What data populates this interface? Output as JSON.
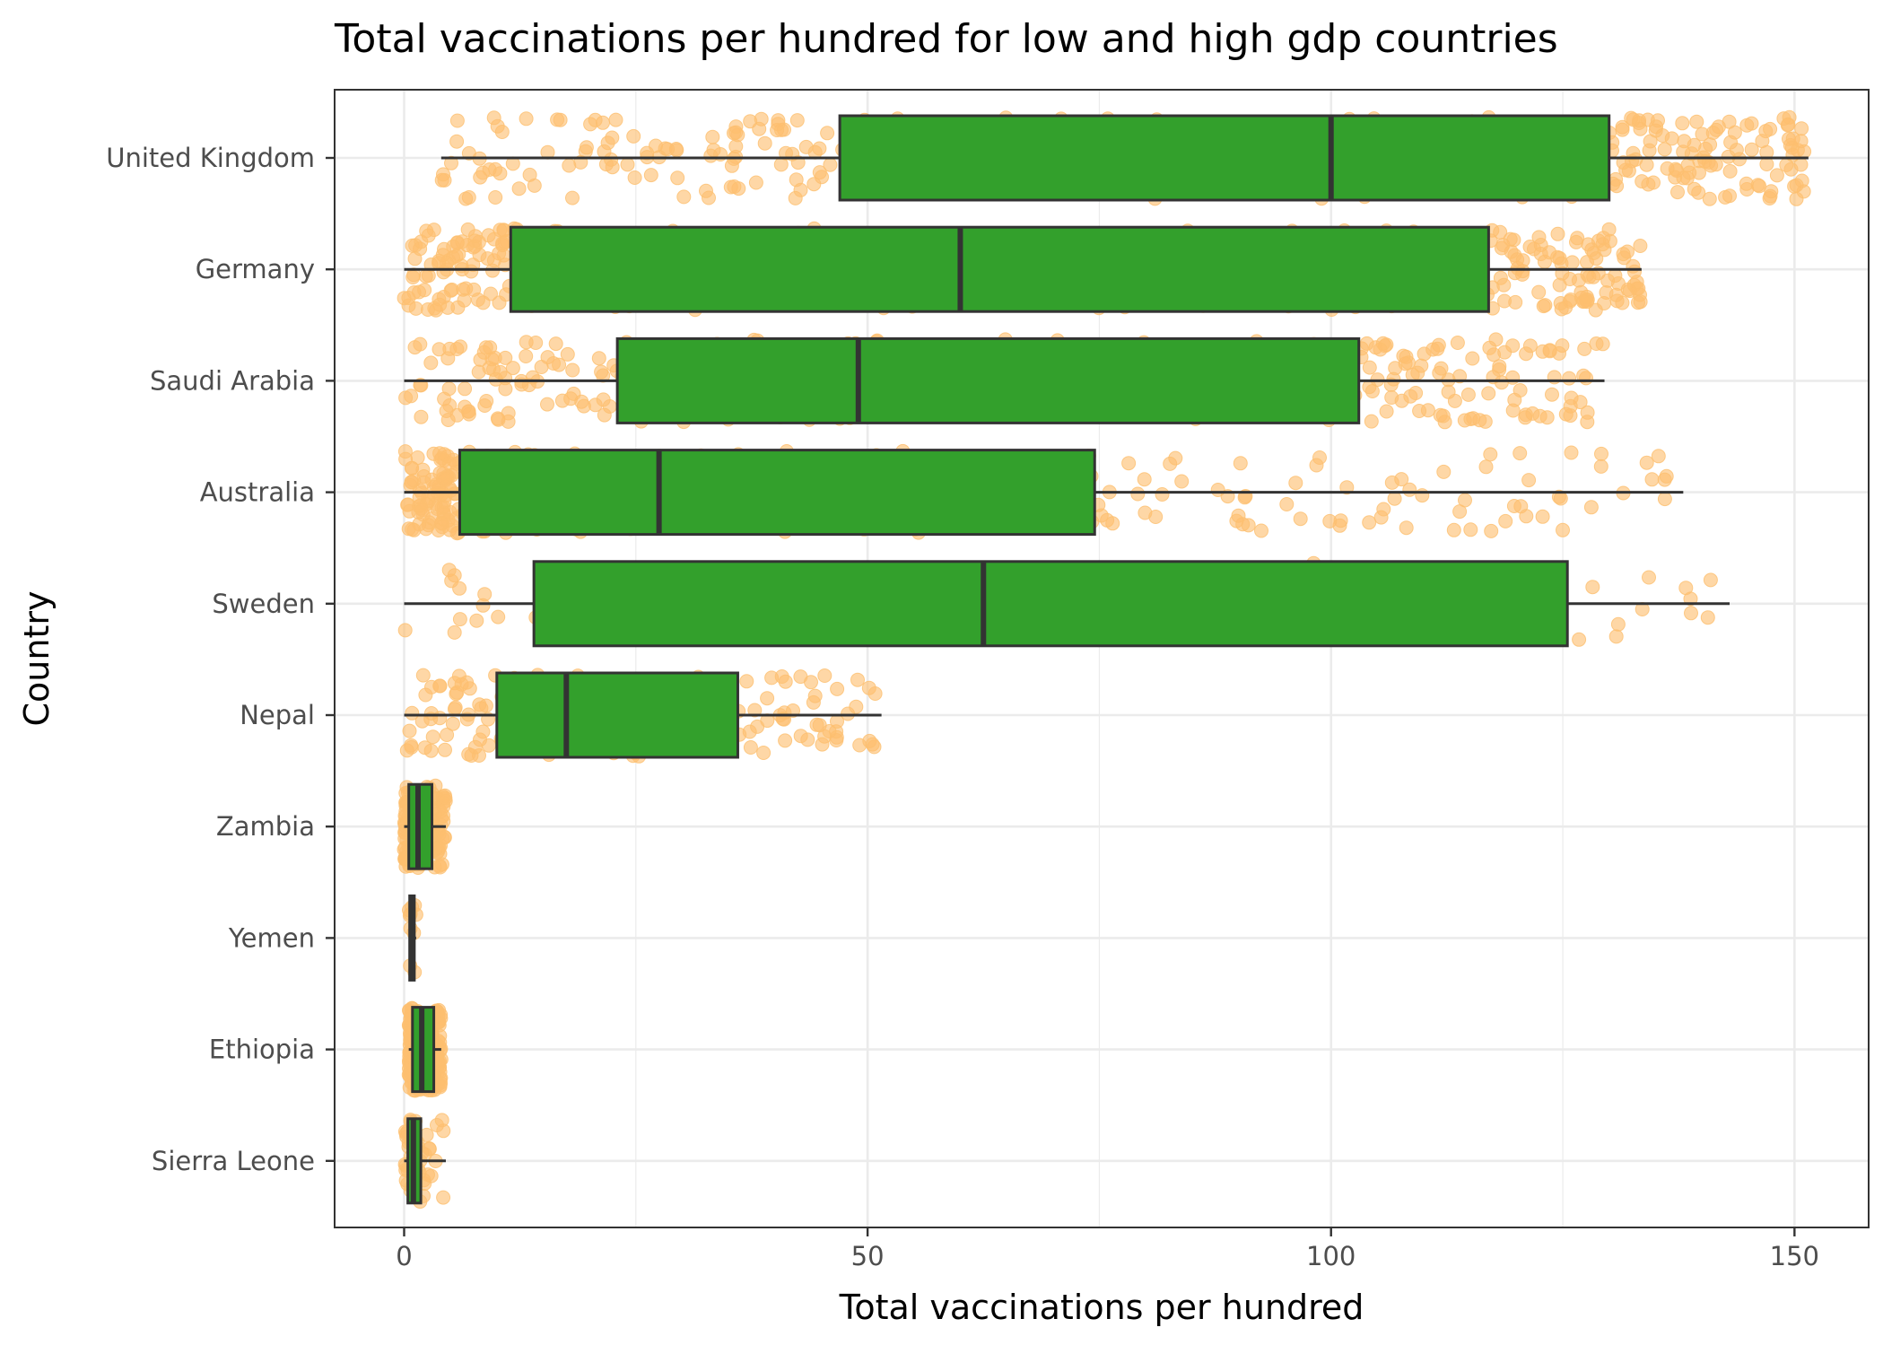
{
  "chart_data": {
    "type": "boxplot",
    "title": "Total vaccinations per hundred for low and high gdp countries",
    "xlabel": "Total vaccinations per hundred",
    "ylabel": "Country",
    "xlim": [
      -7.5,
      158
    ],
    "x_ticks": [
      0,
      50,
      100,
      150
    ],
    "x_tick_labels": [
      "0",
      "50",
      "100",
      "150"
    ],
    "grid": true,
    "orientation": "horizontal",
    "colors": {
      "box_fill": "#33a02c",
      "box_line": "#333333",
      "points": "#fdbf6f",
      "grid": "#ebebeb",
      "panel_border": "#333333"
    },
    "categories": [
      "United Kingdom",
      "Germany",
      "Saudi Arabia",
      "Australia",
      "Sweden",
      "Nepal",
      "Zambia",
      "Yemen",
      "Ethiopia",
      "Sierra Leone"
    ],
    "boxes": [
      {
        "category": "United Kingdom",
        "whisker_low": 4,
        "q1": 47,
        "median": 100,
        "q3": 130,
        "whisker_high": 151.5,
        "point_count": 380
      },
      {
        "category": "Germany",
        "whisker_low": 0,
        "q1": 11.5,
        "median": 60,
        "q3": 117,
        "whisker_high": 133.5,
        "point_count": 380
      },
      {
        "category": "Saudi Arabia",
        "whisker_low": 0,
        "q1": 23,
        "median": 49,
        "q3": 103,
        "whisker_high": 129.5,
        "point_count": 340
      },
      {
        "category": "Australia",
        "whisker_low": 0,
        "q1": 6,
        "median": 27.5,
        "q3": 74.5,
        "whisker_high": 138,
        "point_count": 330
      },
      {
        "category": "Sweden",
        "whisker_low": 0,
        "q1": 14,
        "median": 62.5,
        "q3": 125.5,
        "whisker_high": 143,
        "point_count": 45
      },
      {
        "category": "Nepal",
        "whisker_low": 0,
        "q1": 10,
        "median": 17.5,
        "q3": 36,
        "whisker_high": 51.5,
        "point_count": 160
      },
      {
        "category": "Zambia",
        "whisker_low": 0,
        "q1": 0.5,
        "median": 1.5,
        "q3": 3,
        "whisker_high": 4.5,
        "point_count": 150
      },
      {
        "category": "Yemen",
        "whisker_low": 0.5,
        "q1": 0.6,
        "median": 0.8,
        "q3": 1.1,
        "whisker_high": 1.3,
        "point_count": 10
      },
      {
        "category": "Ethiopia",
        "whisker_low": 0.5,
        "q1": 0.9,
        "median": 1.9,
        "q3": 3.2,
        "whisker_high": 4,
        "point_count": 200
      },
      {
        "category": "Sierra Leone",
        "whisker_low": 0,
        "q1": 0.4,
        "median": 1,
        "q3": 1.8,
        "whisker_high": 4.5,
        "point_count": 50
      }
    ]
  }
}
